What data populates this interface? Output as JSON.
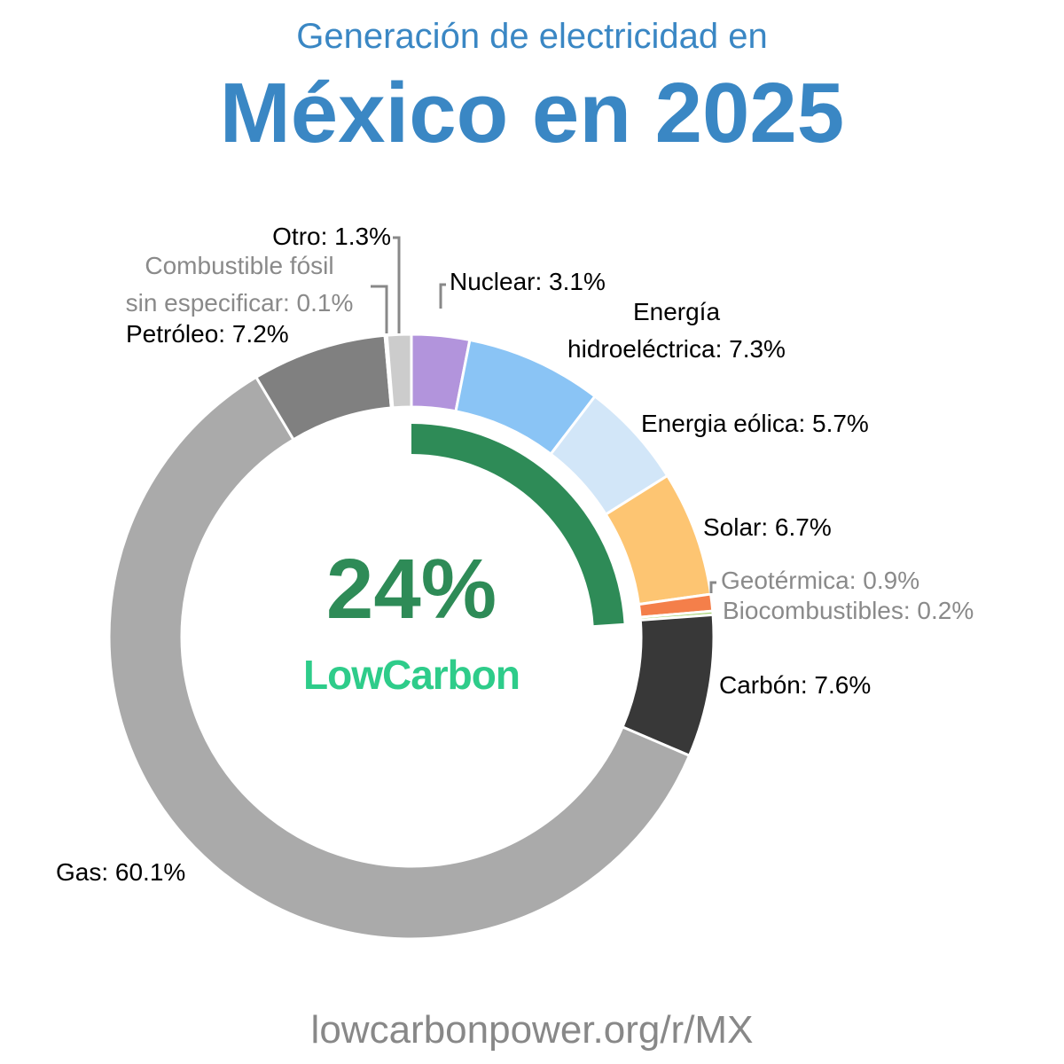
{
  "header": {
    "subtitle": "Generación de electricidad en",
    "title": "México en 2025"
  },
  "center": {
    "lowcarbon_percent_label": "24%",
    "lowcarbon_fraction": 0.24,
    "brand": "LowCarbon"
  },
  "footer": {
    "url": "lowcarbonpower.org/r/MX"
  },
  "colors": {
    "title": "#3a87c4",
    "lowcarbon_arc": "#2e8b57",
    "brand": "#2ecc8a"
  },
  "chart_data": {
    "type": "pie",
    "style": "donut",
    "start": "top",
    "direction": "clockwise",
    "slices": [
      {
        "id": "nuclear",
        "name": "Nuclear",
        "value": 3.1,
        "label": "Nuclear: 3.1%",
        "color": "#b294dc",
        "muted": false
      },
      {
        "id": "hydro",
        "name": "Energía hidroeléctrica",
        "value": 7.3,
        "label_lines": [
          "Energía",
          "hidroeléctrica: 7.3%"
        ],
        "color": "#8ac4f5",
        "muted": false
      },
      {
        "id": "wind",
        "name": "Energia eólica",
        "value": 5.7,
        "label": "Energia eólica: 5.7%",
        "color": "#d2e6f8",
        "muted": false
      },
      {
        "id": "solar",
        "name": "Solar",
        "value": 6.7,
        "label": "Solar: 6.7%",
        "color": "#fdc572",
        "muted": false
      },
      {
        "id": "geothermal",
        "name": "Geotérmica",
        "value": 0.9,
        "label": "Geotérmica: 0.9%",
        "color": "#f47f4a",
        "muted": true
      },
      {
        "id": "biofuels",
        "name": "Biocombustibles",
        "value": 0.2,
        "label": "Biocombustibles: 0.2%",
        "color": "#9dce63",
        "muted": true
      },
      {
        "id": "coal",
        "name": "Carbón",
        "value": 7.6,
        "label": "Carbón: 7.6%",
        "color": "#383838",
        "muted": false
      },
      {
        "id": "gas",
        "name": "Gas",
        "value": 60.1,
        "label": "Gas: 60.1%",
        "color": "#aaaaaa",
        "muted": false
      },
      {
        "id": "oil",
        "name": "Petróleo",
        "value": 7.2,
        "label": "Petróleo: 7.2%",
        "color": "#808080",
        "muted": false
      },
      {
        "id": "unspecified-fossil",
        "name": "Combustible fósil sin especificar",
        "value": 0.1,
        "label_lines": [
          "Combustible fósil",
          "sin especificar: 0.1%"
        ],
        "color": "#666666",
        "muted": true
      },
      {
        "id": "other",
        "name": "Otro",
        "value": 1.3,
        "label": "Otro: 1.3%",
        "color": "#cccccc",
        "muted": false
      }
    ]
  }
}
